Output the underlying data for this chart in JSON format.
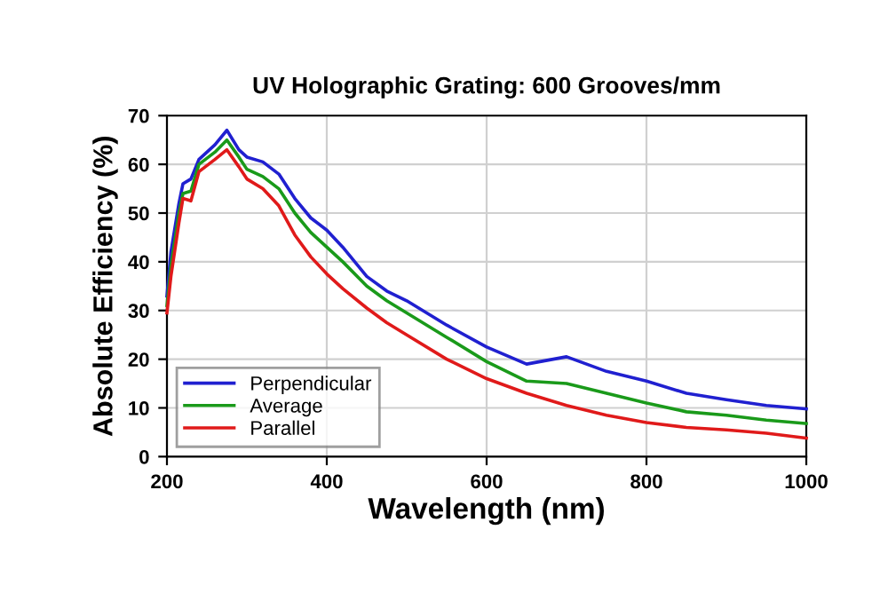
{
  "chart_data": {
    "type": "line",
    "title": "UV Holographic Grating: 600 Grooves/mm",
    "xlabel": "Wavelength (nm)",
    "ylabel": "Absolute Efficiency (%)",
    "x": [
      200,
      205,
      215,
      220,
      230,
      240,
      260,
      275,
      290,
      300,
      320,
      340,
      360,
      380,
      400,
      420,
      450,
      475,
      500,
      550,
      600,
      650,
      700,
      750,
      800,
      850,
      900,
      950,
      1000
    ],
    "series": [
      {
        "name": "Perpendicular",
        "color": "#2020d0",
        "values": [
          33,
          42,
          52,
          56,
          57,
          61,
          64,
          67,
          63,
          61.5,
          60.5,
          58,
          53,
          49,
          46.5,
          43,
          37,
          34,
          32,
          27,
          22.5,
          19,
          20.5,
          17.5,
          15.5,
          13,
          11.7,
          10.5,
          9.8
        ]
      },
      {
        "name": "Average",
        "color": "#1a9a1a",
        "values": [
          31,
          39,
          50,
          54,
          54.5,
          60,
          62.5,
          65,
          61.5,
          59,
          57.5,
          55,
          50,
          46,
          43,
          40,
          35,
          32,
          29.5,
          24.5,
          19.5,
          15.5,
          15,
          13,
          11,
          9.2,
          8.5,
          7.5,
          6.8
        ]
      },
      {
        "name": "Parallel",
        "color": "#e01a1a",
        "values": [
          29.5,
          37,
          48,
          53,
          52.5,
          58.5,
          61,
          63,
          59.5,
          57,
          55,
          51.5,
          45.5,
          41,
          37.5,
          34.5,
          30.5,
          27.5,
          25,
          20,
          16,
          13,
          10.5,
          8.5,
          7,
          6,
          5.5,
          4.8,
          3.8
        ]
      }
    ],
    "xlim": [
      200,
      1000
    ],
    "xticks": [
      200,
      400,
      600,
      800,
      1000
    ],
    "ylim": [
      0,
      70
    ],
    "yticks": [
      0,
      10,
      20,
      30,
      40,
      50,
      60,
      70
    ],
    "grid": true,
    "legend": "bottom left",
    "line_style": "solid"
  }
}
